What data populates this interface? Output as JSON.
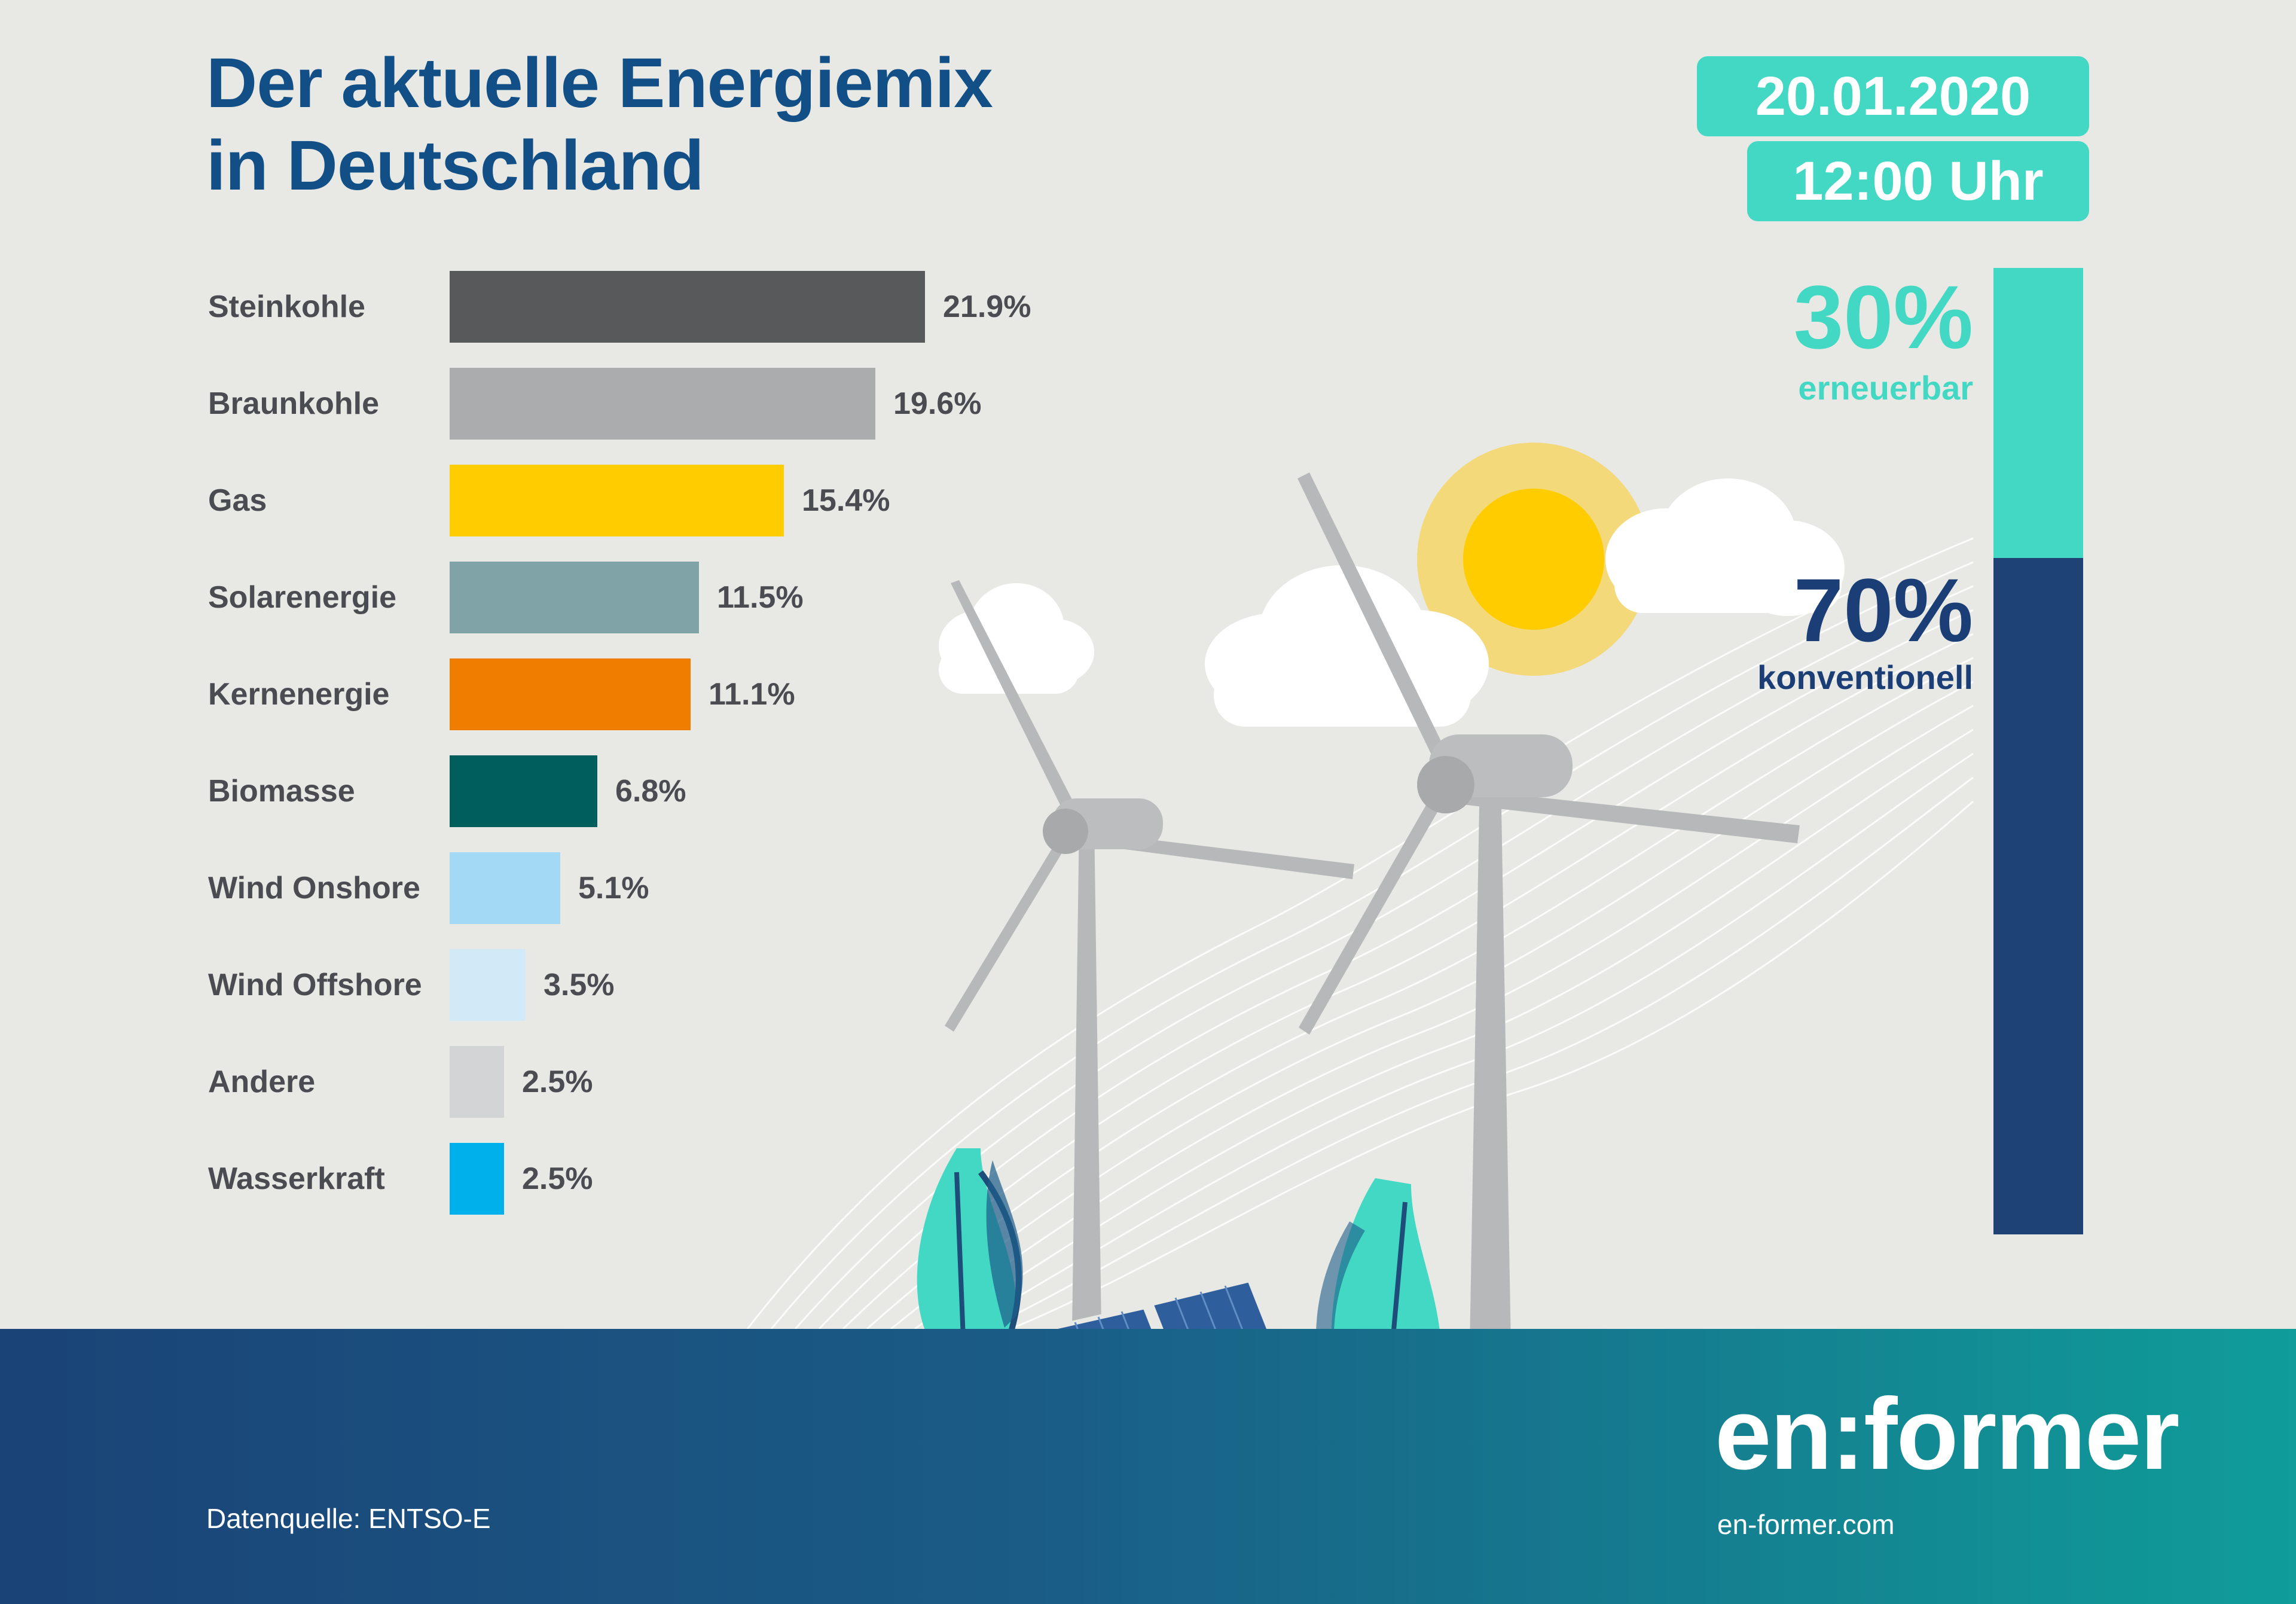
{
  "header": {
    "title_line1": "Der aktuelle Energiemix",
    "title_line2": "in Deutschland",
    "date": "20.01.2020",
    "time": "12:00 Uhr"
  },
  "chart_data": {
    "type": "bar",
    "orientation": "horizontal",
    "title": "Der aktuelle Energiemix in Deutschland",
    "categories": [
      "Steinkohle",
      "Braunkohle",
      "Gas",
      "Solarenergie",
      "Kernenergie",
      "Biomasse",
      "Wind Onshore",
      "Wind Offshore",
      "Andere",
      "Wasserkraft"
    ],
    "values": [
      21.9,
      19.6,
      15.4,
      11.5,
      11.1,
      6.8,
      5.1,
      3.5,
      2.5,
      2.5
    ],
    "value_labels": [
      "21.9%",
      "19.6%",
      "15.4%",
      "11.5%",
      "11.1%",
      "6.8%",
      "5.1%",
      "3.5%",
      "2.5%",
      "2.5%"
    ],
    "colors": [
      "#58595b",
      "#abacad",
      "#ffcc00",
      "#7fa3a6",
      "#ef7d00",
      "#005e5d",
      "#a3d9f4",
      "#d2e9f7",
      "#d3d4d5",
      "#00b0ea"
    ],
    "xlim": [
      0,
      21.9
    ]
  },
  "share": {
    "renewable_pct": "30%",
    "renewable_label": "erneuerbar",
    "conventional_pct": "70%",
    "conventional_label": "konventionell",
    "renewable_value": 30,
    "conventional_value": 70,
    "renewable_color": "#42d8c4",
    "conventional_color": "#1e4273"
  },
  "footer": {
    "source": "Datenquelle: ENTSO-E",
    "brand": "en:former",
    "website": "en-former.com"
  }
}
